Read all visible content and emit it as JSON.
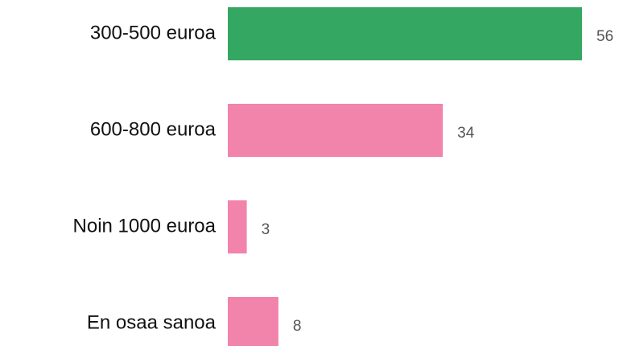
{
  "chart_data": {
    "type": "bar",
    "orientation": "horizontal",
    "categories": [
      "300-500 euroa",
      "600-800 euroa",
      "Noin 1000 euroa",
      "En osaa sanoa"
    ],
    "values": [
      56,
      34,
      3,
      8
    ],
    "colors": [
      "#34a862",
      "#f283ab",
      "#f283ab",
      "#f283ab"
    ]
  }
}
